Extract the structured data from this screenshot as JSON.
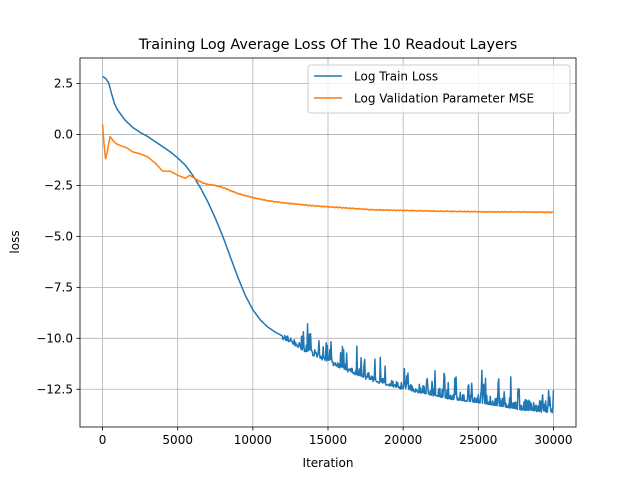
{
  "chart_data": {
    "type": "line",
    "title": "Training Log Average Loss Of The 10 Readout Layers",
    "xlabel": "Iteration",
    "ylabel": "loss",
    "xlim": [
      -1500,
      31500
    ],
    "ylim": [
      -14.35,
      3.75
    ],
    "xticks": [
      0,
      5000,
      10000,
      15000,
      20000,
      25000,
      30000
    ],
    "xtick_labels": [
      "0",
      "5000",
      "10000",
      "15000",
      "20000",
      "25000",
      "30000"
    ],
    "yticks": [
      2.5,
      0.0,
      -2.5,
      -5.0,
      -7.5,
      -10.0,
      -12.5
    ],
    "ytick_labels": [
      "2.5",
      "0.0",
      "−2.5",
      "−5.0",
      "−7.5",
      "−10.0",
      "−12.5"
    ],
    "grid": true,
    "legend_position": "top-right",
    "series": [
      {
        "name": "Log Train Loss",
        "color": "#1f77b4",
        "x": [
          0,
          200,
          400,
          600,
          800,
          1000,
          1500,
          2000,
          2500,
          3000,
          3500,
          4000,
          4500,
          5000,
          5500,
          6000,
          6500,
          7000,
          7500,
          8000,
          8500,
          9000,
          9500,
          10000,
          10500,
          11000,
          11500,
          12000,
          13000,
          14000,
          15000,
          16000,
          17000,
          18000,
          19000,
          20000,
          21000,
          22000,
          23000,
          24000,
          25000,
          26000,
          27000,
          28000,
          29000,
          30000
        ],
        "y": [
          2.85,
          2.75,
          2.55,
          2.0,
          1.5,
          1.2,
          0.7,
          0.35,
          0.1,
          -0.1,
          -0.35,
          -0.6,
          -0.85,
          -1.15,
          -1.5,
          -2.0,
          -2.6,
          -3.3,
          -4.1,
          -5.0,
          -6.0,
          -7.0,
          -7.9,
          -8.6,
          -9.1,
          -9.45,
          -9.7,
          -9.9,
          -10.3,
          -10.7,
          -11.05,
          -11.4,
          -11.7,
          -11.95,
          -12.15,
          -12.35,
          -12.5,
          -12.65,
          -12.8,
          -12.9,
          -13.0,
          -13.1,
          -13.2,
          -13.3,
          -13.35,
          -13.4
        ],
        "noise_band_upper": [
          -9.9,
          -10.1,
          -10.45,
          -10.8,
          -11.05,
          -11.3,
          -11.5,
          -11.65,
          -11.8,
          -11.9,
          -12.0,
          -12.1,
          -12.2,
          -12.3,
          -12.35,
          -12.4
        ],
        "noise_band_x": [
          12000,
          13000,
          14000,
          15000,
          16000,
          17000,
          18000,
          19000,
          20000,
          21000,
          22000,
          23000,
          24000,
          25000,
          27000,
          30000
        ]
      },
      {
        "name": "Log Validation Parameter MSE",
        "color": "#ff7f0e",
        "x": [
          0,
          100,
          200,
          300,
          500,
          700,
          900,
          1200,
          1600,
          2000,
          2500,
          3000,
          3500,
          4000,
          4500,
          5000,
          5500,
          5800,
          6200,
          6600,
          7000,
          7500,
          8000,
          9000,
          10000,
          11000,
          12000,
          14000,
          16000,
          18000,
          20000,
          22000,
          24000,
          26000,
          28000,
          30000
        ],
        "y": [
          0.5,
          -0.5,
          -1.2,
          -0.9,
          -0.1,
          -0.3,
          -0.45,
          -0.55,
          -0.65,
          -0.85,
          -0.95,
          -1.1,
          -1.4,
          -1.8,
          -1.8,
          -2.0,
          -2.15,
          -2.0,
          -2.2,
          -2.35,
          -2.45,
          -2.5,
          -2.6,
          -2.9,
          -3.1,
          -3.25,
          -3.35,
          -3.5,
          -3.6,
          -3.7,
          -3.73,
          -3.76,
          -3.78,
          -3.8,
          -3.8,
          -3.82
        ]
      }
    ]
  }
}
